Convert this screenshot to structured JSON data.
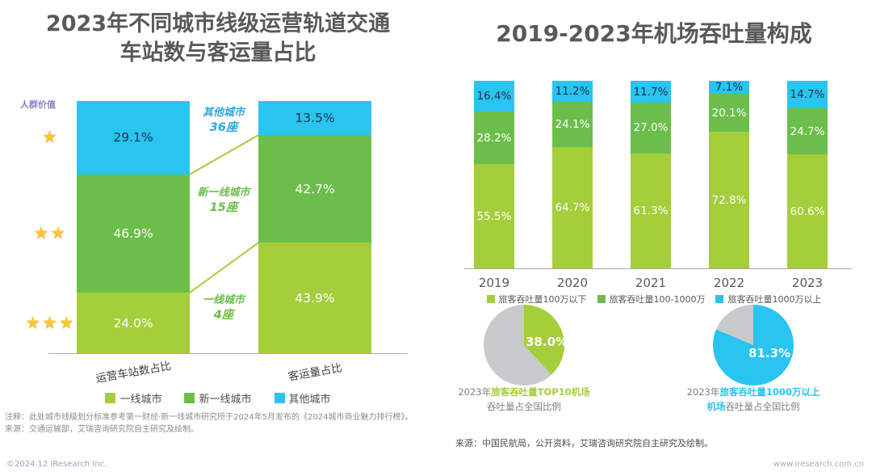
{
  "colors": {
    "lime": "#A5CE3B",
    "green": "#6CBE4B",
    "cyan": "#29C4F0",
    "blue": "#2BA7DF",
    "gray": "#C9CACC",
    "star": "#FFC42E",
    "title": "#58595B"
  },
  "left_panel": {
    "title_line1": "2023年不同城市线级运营轨道交通",
    "title_line2": "车站数与客运量占比",
    "y_axis_label": "人群价值",
    "note_line1": "注释：此处城市线级划分标准参考第一财经·新一线城市研究所于2024年5月发布的《2024城市商业魅力排行榜》。",
    "note_line2": "来源：交通运输部，艾瑞咨询研究院自主研究及绘制。"
  },
  "right_panel": {
    "title": "2019-2023年机场吞吐量构成",
    "source": "来源：中国民航局，公开资料，艾瑞咨询研究院自主研究及绘制。"
  },
  "footer": {
    "copyright": "©2024.12 iResearch Inc.",
    "website": "www.iresearch.com.cn"
  },
  "chart_data": [
    {
      "id": "city-tier-rail-transit",
      "type": "bar",
      "subtype": "stacked-100",
      "title": "2023年不同城市线级运营轨道交通车站数与客运量占比",
      "categories": [
        "运营车站数占比",
        "客运量占比"
      ],
      "series": [
        {
          "name": "一线城市",
          "color": "lime",
          "values": [
            24.0,
            43.9
          ]
        },
        {
          "name": "新一线城市",
          "color": "green",
          "values": [
            46.9,
            42.7
          ]
        },
        {
          "name": "其他城市",
          "color": "cyan",
          "values": [
            29.1,
            13.5
          ]
        }
      ],
      "ylim": [
        0,
        100
      ],
      "grid": false,
      "legend_position": "bottom",
      "star_rows": [
        1,
        2,
        3
      ],
      "annotations": [
        {
          "label": "其他城市",
          "count": "36座",
          "color": "blue"
        },
        {
          "label": "新一线城市",
          "count": "15座",
          "color": "green"
        },
        {
          "label": "一线城市",
          "count": "4座",
          "color": "green"
        }
      ]
    },
    {
      "id": "airport-throughput-composition",
      "type": "bar",
      "subtype": "stacked-100",
      "title": "2019-2023年机场吞吐量构成",
      "categories": [
        "2019",
        "2020",
        "2021",
        "2022",
        "2023"
      ],
      "series": [
        {
          "name": "旅客吞吐量100万以下",
          "color": "lime",
          "values": [
            55.5,
            64.7,
            61.3,
            72.8,
            60.6
          ]
        },
        {
          "name": "旅客吞吐量100-1000万",
          "color": "green",
          "values": [
            28.2,
            24.1,
            27.0,
            20.1,
            24.7
          ]
        },
        {
          "name": "旅客吞吐量1000万以上",
          "color": "cyan",
          "values": [
            16.4,
            11.2,
            11.7,
            7.1,
            14.7
          ]
        }
      ],
      "ylim": [
        0,
        100
      ],
      "grid": false,
      "legend_position": "bottom"
    },
    {
      "id": "top10-airport-share",
      "type": "pie",
      "highlight_label": "2023年旅客吞吐量TOP10机场吞吐量占全国比例",
      "highlight_value": 38.0,
      "remainder_value": 62.0,
      "highlight_color": "lime",
      "remainder_color": "gray",
      "value_label": "38.0%",
      "caption_line1": [
        {
          "text": "2023年",
          "color": "muted"
        },
        {
          "text": "旅客吞吐量TOP10机场",
          "color": "lime"
        }
      ],
      "caption_line2": [
        {
          "text": "吞吐量占全国比例",
          "color": "muted"
        }
      ]
    },
    {
      "id": "over-10m-airport-share",
      "type": "pie",
      "highlight_label": "2023年旅客吞吐量1000万以上机场吞吐量占全国比例",
      "highlight_value": 81.3,
      "remainder_value": 18.7,
      "highlight_color": "cyan",
      "remainder_color": "gray",
      "value_label": "81.3%",
      "caption_line1": [
        {
          "text": "2023年",
          "color": "muted"
        },
        {
          "text": "旅客吞吐量1000万以上",
          "color": "cyan"
        }
      ],
      "caption_line2": [
        {
          "text": "机场",
          "color": "cyan"
        },
        {
          "text": "吞吐量占全国比例",
          "color": "muted"
        }
      ]
    }
  ]
}
